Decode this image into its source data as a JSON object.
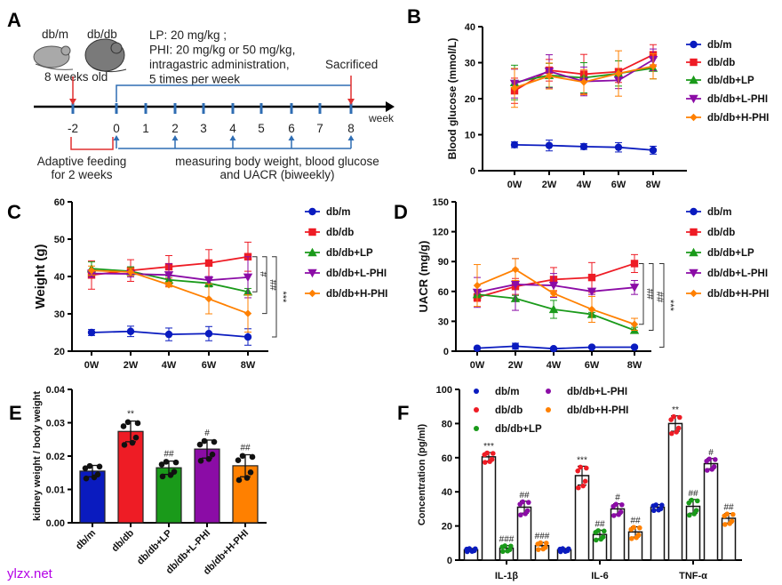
{
  "colors": {
    "db_m": "#0a1bbf",
    "db_db": "#ee1c25",
    "lp": "#1a9a1a",
    "lphi": "#8b0ca6",
    "hphi": "#ff8000",
    "timeline_blue": "#2f6db3",
    "timeline_red": "#e03030",
    "watermark": "#b400e6"
  },
  "panel_labels": [
    "A",
    "B",
    "C",
    "D",
    "E",
    "F"
  ],
  "watermark": "ylzx.net",
  "diagram": {
    "mouse_labels": [
      "db/m",
      "db/db"
    ],
    "age": "8 weeks old",
    "treatment_lines": [
      "LP: 20 mg/kg ;",
      "PHI: 20 mg/kg or 50 mg/kg,",
      "intragastric administration,",
      "5 times per week"
    ],
    "sacrificed": "Sacrificed",
    "axis_unit": "week",
    "weeks": [
      "-2",
      "0",
      "1",
      "2",
      "3",
      "4",
      "5",
      "6",
      "7",
      "8"
    ],
    "adaptive": [
      "Adaptive feeding",
      "for 2 weeks"
    ],
    "measuring": [
      "measuring body weight, blood glucose",
      "and UACR (biweekly)"
    ]
  },
  "chart_data": [
    {
      "panel": "B",
      "type": "line",
      "ylabel": "Blood glucose (mmol/L)",
      "ylim": [
        0,
        40
      ],
      "yticks": [
        0,
        10,
        20,
        30,
        40
      ],
      "categories": [
        "0W",
        "2W",
        "4W",
        "6W",
        "8W"
      ],
      "legend_position": "right",
      "series": [
        {
          "name": "db/m",
          "color_key": "db_m",
          "marker": "circle",
          "values": [
            7.2,
            7.0,
            6.7,
            6.5,
            5.7
          ],
          "errors": [
            0.8,
            1.5,
            0.8,
            1.3,
            1.1
          ]
        },
        {
          "name": "db/db",
          "color_key": "db_db",
          "marker": "square",
          "values": [
            22.2,
            27.9,
            26.8,
            27.5,
            32.2
          ],
          "errors": [
            3.5,
            3.0,
            5.5,
            3.0,
            2.8
          ]
        },
        {
          "name": "db/db+LP",
          "color_key": "lp",
          "marker": "triangle-up",
          "values": [
            24.5,
            26.5,
            25.8,
            27.0,
            28.5
          ],
          "errors": [
            4.8,
            3.3,
            4.2,
            3.5,
            3.0
          ]
        },
        {
          "name": "db/db+L-PHI",
          "color_key": "lphi",
          "marker": "triangle-down",
          "values": [
            24.2,
            27.6,
            24.8,
            25.1,
            30.8
          ],
          "errors": [
            4.0,
            4.6,
            4.0,
            2.3,
            3.0
          ]
        },
        {
          "name": "db/db+H-PHI",
          "color_key": "hphi",
          "marker": "diamond",
          "values": [
            23.0,
            26.3,
            24.6,
            27.0,
            29.0
          ],
          "errors": [
            5.4,
            3.6,
            3.5,
            6.3,
            3.5
          ]
        }
      ]
    },
    {
      "panel": "C",
      "type": "line",
      "ylabel": "Weight (g)",
      "ylim": [
        20,
        60
      ],
      "yticks": [
        20,
        30,
        40,
        50,
        60
      ],
      "categories": [
        "0W",
        "2W",
        "4W",
        "6W",
        "8W"
      ],
      "legend_position": "right",
      "series": [
        {
          "name": "db/m",
          "color_key": "db_m",
          "marker": "circle",
          "values": [
            25.0,
            25.3,
            24.5,
            24.7,
            23.8
          ],
          "errors": [
            0.8,
            1.4,
            1.7,
            1.9,
            2.2
          ]
        },
        {
          "name": "db/db",
          "color_key": "db_db",
          "marker": "square",
          "values": [
            40.4,
            41.6,
            42.6,
            43.6,
            45.3
          ],
          "errors": [
            3.8,
            2.9,
            3.0,
            3.6,
            3.9
          ]
        },
        {
          "name": "db/db+LP",
          "color_key": "lp",
          "marker": "triangle-up",
          "values": [
            42.1,
            41.4,
            39.1,
            38.2,
            35.9
          ],
          "errors": [
            1.8,
            1.2,
            1.0,
            1.0,
            0.9
          ]
        },
        {
          "name": "db/db+L-PHI",
          "color_key": "lphi",
          "marker": "triangle-down",
          "values": [
            40.8,
            40.7,
            40.4,
            39.0,
            39.8
          ],
          "errors": [
            1.0,
            0.8,
            3.0,
            1.0,
            5.5
          ]
        },
        {
          "name": "db/db+H-PHI",
          "color_key": "hphi",
          "marker": "diamond",
          "values": [
            41.6,
            41.2,
            37.8,
            34.0,
            30.1
          ],
          "errors": [
            1.2,
            1.0,
            0.6,
            4.0,
            5.0
          ]
        }
      ],
      "annotations": [
        "#",
        "##",
        "***"
      ]
    },
    {
      "panel": "D",
      "type": "line",
      "ylabel": "UACR (mg/g)",
      "ylim": [
        0,
        150
      ],
      "yticks": [
        0,
        30,
        60,
        90,
        120,
        150
      ],
      "categories": [
        "0W",
        "2W",
        "4W",
        "6W",
        "8W"
      ],
      "legend_position": "right",
      "series": [
        {
          "name": "db/m",
          "color_key": "db_m",
          "marker": "circle",
          "values": [
            3,
            5,
            2.5,
            4,
            4
          ],
          "errors": [
            1,
            3,
            1,
            1,
            1
          ]
        },
        {
          "name": "db/db",
          "color_key": "db_db",
          "marker": "square",
          "values": [
            54,
            65,
            72,
            74,
            88
          ],
          "errors": [
            4,
            8,
            12,
            15,
            9
          ]
        },
        {
          "name": "db/db+LP",
          "color_key": "lp",
          "marker": "triangle-up",
          "values": [
            57,
            53,
            42,
            37,
            21
          ],
          "errors": [
            3,
            3,
            9,
            2,
            3
          ]
        },
        {
          "name": "db/db+L-PHI",
          "color_key": "lphi",
          "marker": "triangle-down",
          "values": [
            59,
            67,
            66,
            60,
            64
          ],
          "errors": [
            15,
            26,
            12,
            3,
            7
          ]
        },
        {
          "name": "db/db+H-PHI",
          "color_key": "hphi",
          "marker": "diamond",
          "values": [
            66,
            82,
            58,
            42,
            27
          ],
          "errors": [
            21,
            11,
            3,
            13,
            6
          ]
        }
      ],
      "annotations": [
        "##",
        "##",
        "***"
      ]
    },
    {
      "panel": "E",
      "type": "bar",
      "ylabel": "kidney weight / body weight",
      "ylim": [
        0,
        0.04
      ],
      "yticks": [
        "0.00",
        "0.01",
        "0.02",
        "0.03",
        "0.04"
      ],
      "categories": [
        "db/m",
        "db/db",
        "db/db+LP",
        "db/db+L-PHI",
        "db/db+H-PHI"
      ],
      "color_keys": [
        "db_m",
        "db_db",
        "lp",
        "lphi",
        "hphi"
      ],
      "values": [
        0.0155,
        0.0274,
        0.0165,
        0.0221,
        0.0171
      ],
      "errors": [
        0.0017,
        0.0031,
        0.002,
        0.0027,
        0.0033
      ],
      "annotations": [
        "",
        "**",
        "##",
        "#",
        "##"
      ]
    },
    {
      "panel": "F",
      "type": "bar",
      "ylabel": "Concentration (pg/ml)",
      "ylim": [
        0,
        100
      ],
      "yticks": [
        0,
        20,
        40,
        60,
        80,
        100
      ],
      "categories": [
        "IL-1β",
        "IL-6",
        "TNF-α"
      ],
      "legend_position": "top",
      "series": [
        {
          "name": "db/m",
          "color_key": "db_m",
          "values": [
            6,
            6,
            31
          ],
          "errors": [
            0.8,
            0.8,
            1.5
          ],
          "annotations": [
            "",
            "",
            ""
          ]
        },
        {
          "name": "db/db",
          "color_key": "db_db",
          "values": [
            60.5,
            49.5,
            80
          ],
          "errors": [
            2.5,
            5.5,
            4.5
          ],
          "annotations": [
            "***",
            "***",
            "**"
          ]
        },
        {
          "name": "db/db+LP",
          "color_key": "lp",
          "values": [
            7,
            15,
            31.5
          ],
          "errors": [
            1.5,
            2.5,
            4
          ],
          "annotations": [
            "###",
            "##",
            "##"
          ]
        },
        {
          "name": "db/db+L-PHI",
          "color_key": "lphi",
          "values": [
            31,
            30,
            56.5
          ],
          "errors": [
            3.5,
            3,
            3
          ],
          "annotations": [
            "##",
            "#",
            "#"
          ]
        },
        {
          "name": "db/db+H-PHI",
          "color_key": "hphi",
          "values": [
            8.5,
            16.5,
            24.5
          ],
          "errors": [
            1.8,
            3,
            2.8
          ],
          "annotations": [
            "###",
            "##",
            "##"
          ]
        }
      ]
    }
  ]
}
